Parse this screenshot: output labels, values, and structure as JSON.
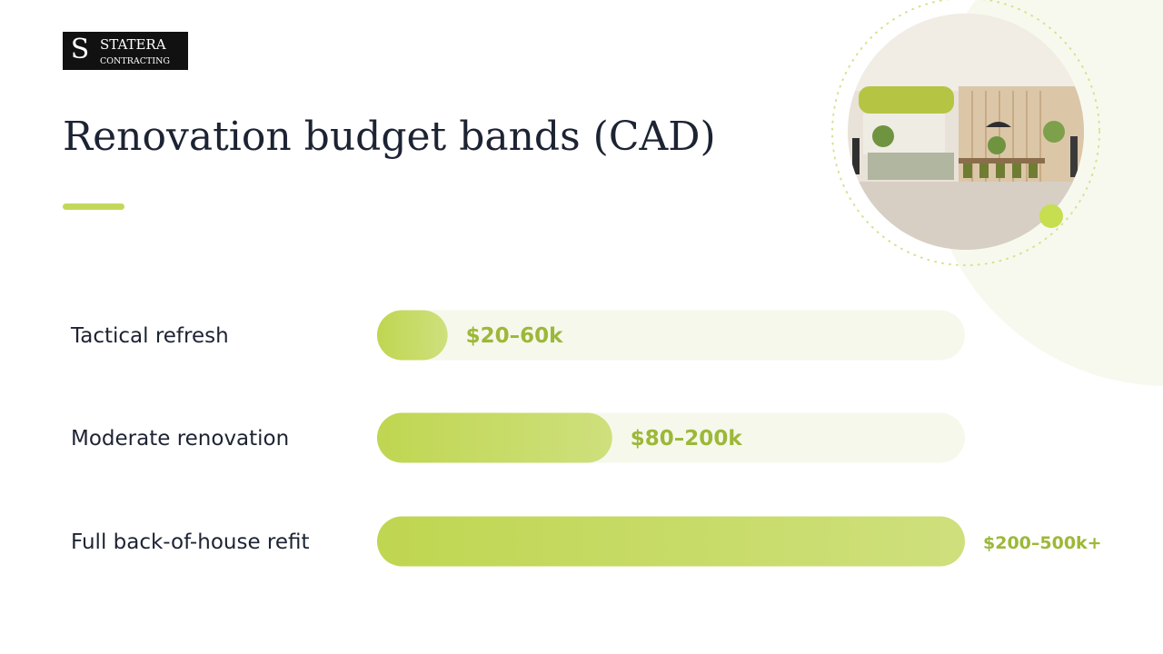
{
  "logo": {
    "name": "STATERA",
    "tagline": "CONTRACTING"
  },
  "chart_data": {
    "type": "bar",
    "orientation": "horizontal",
    "title": "Renovation budget bands (CAD)",
    "categories": [
      "Tactical refresh",
      "Moderate renovation",
      "Full back-of-house refit"
    ],
    "values": [
      60,
      200,
      500
    ],
    "value_labels": [
      "$20–60k",
      "$80–200k",
      "$200–500k+"
    ],
    "xlim": [
      0,
      500
    ],
    "color": "#bfd651",
    "label_color": "#9cb838"
  }
}
